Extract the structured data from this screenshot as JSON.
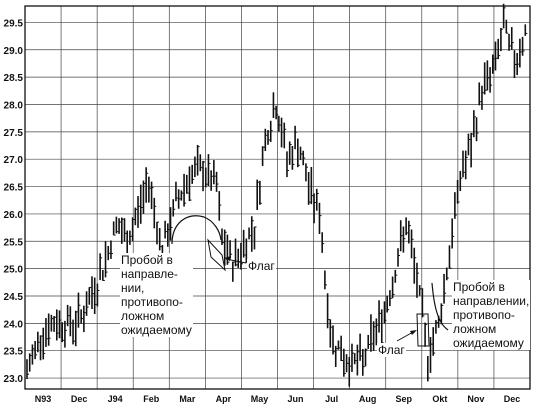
{
  "chart_data": {
    "type": "ohlc",
    "title": "",
    "xlabel": "",
    "ylabel": "",
    "ylim": [
      22.8,
      29.8
    ],
    "y_ticks": [
      "23.0",
      "23.5",
      "24.0",
      "24.5",
      "25.0",
      "25.5",
      "26.0",
      "26.5",
      "27.0",
      "27.5",
      "28.0",
      "28.5",
      "29.0",
      "29.5"
    ],
    "x_ticks": [
      "N93",
      "Dec",
      "J94",
      "Feb",
      "Mar",
      "Apr",
      "May",
      "Jun",
      "Jul",
      "Aug",
      "Sep",
      "Okt",
      "Nov",
      "Dec"
    ],
    "grid": true,
    "price_path_approx": [
      {
        "t": 0,
        "v": 23.1
      },
      {
        "t": 5,
        "v": 23.8
      },
      {
        "t": 10,
        "v": 24.0
      },
      {
        "t": 18,
        "v": 24.0
      },
      {
        "t": 22,
        "v": 24.3
      },
      {
        "t": 28,
        "v": 25.0
      },
      {
        "t": 33,
        "v": 25.8
      },
      {
        "t": 37,
        "v": 25.5
      },
      {
        "t": 40,
        "v": 25.9
      },
      {
        "t": 45,
        "v": 26.6
      },
      {
        "t": 50,
        "v": 25.3
      },
      {
        "t": 55,
        "v": 26.2
      },
      {
        "t": 60,
        "v": 26.7
      },
      {
        "t": 65,
        "v": 26.8
      },
      {
        "t": 70,
        "v": 26.5
      },
      {
        "t": 72,
        "v": 25.5
      },
      {
        "t": 76,
        "v": 25.1
      },
      {
        "t": 80,
        "v": 25.4
      },
      {
        "t": 84,
        "v": 25.8
      },
      {
        "t": 88,
        "v": 27.4
      },
      {
        "t": 92,
        "v": 28.0
      },
      {
        "t": 96,
        "v": 27.0
      },
      {
        "t": 100,
        "v": 27.3
      },
      {
        "t": 104,
        "v": 26.5
      },
      {
        "t": 108,
        "v": 26.0
      },
      {
        "t": 112,
        "v": 23.8
      },
      {
        "t": 118,
        "v": 23.3
      },
      {
        "t": 124,
        "v": 23.3
      },
      {
        "t": 128,
        "v": 23.8
      },
      {
        "t": 132,
        "v": 24.2
      },
      {
        "t": 136,
        "v": 25.0
      },
      {
        "t": 140,
        "v": 25.8
      },
      {
        "t": 144,
        "v": 24.8
      },
      {
        "t": 148,
        "v": 23.4
      },
      {
        "t": 152,
        "v": 24.0
      },
      {
        "t": 156,
        "v": 25.3
      },
      {
        "t": 160,
        "v": 26.7
      },
      {
        "t": 164,
        "v": 27.2
      },
      {
        "t": 168,
        "v": 28.3
      },
      {
        "t": 172,
        "v": 28.6
      },
      {
        "t": 176,
        "v": 29.4
      },
      {
        "t": 180,
        "v": 28.8
      },
      {
        "t": 184,
        "v": 29.3
      }
    ]
  },
  "annotations": {
    "breakout1": "Пробой в\nнаправле-\nнии,\nпротивопо-\nложном\nожидаемому",
    "flag1": "Флаг",
    "breakout2": "Пробой в\nнаправлении,\nпротивопо-\nложном\nожидаемому",
    "flag2": "Флаг"
  },
  "colors": {
    "ink": "#111111",
    "grid": "#444444",
    "background": "#ffffff"
  }
}
